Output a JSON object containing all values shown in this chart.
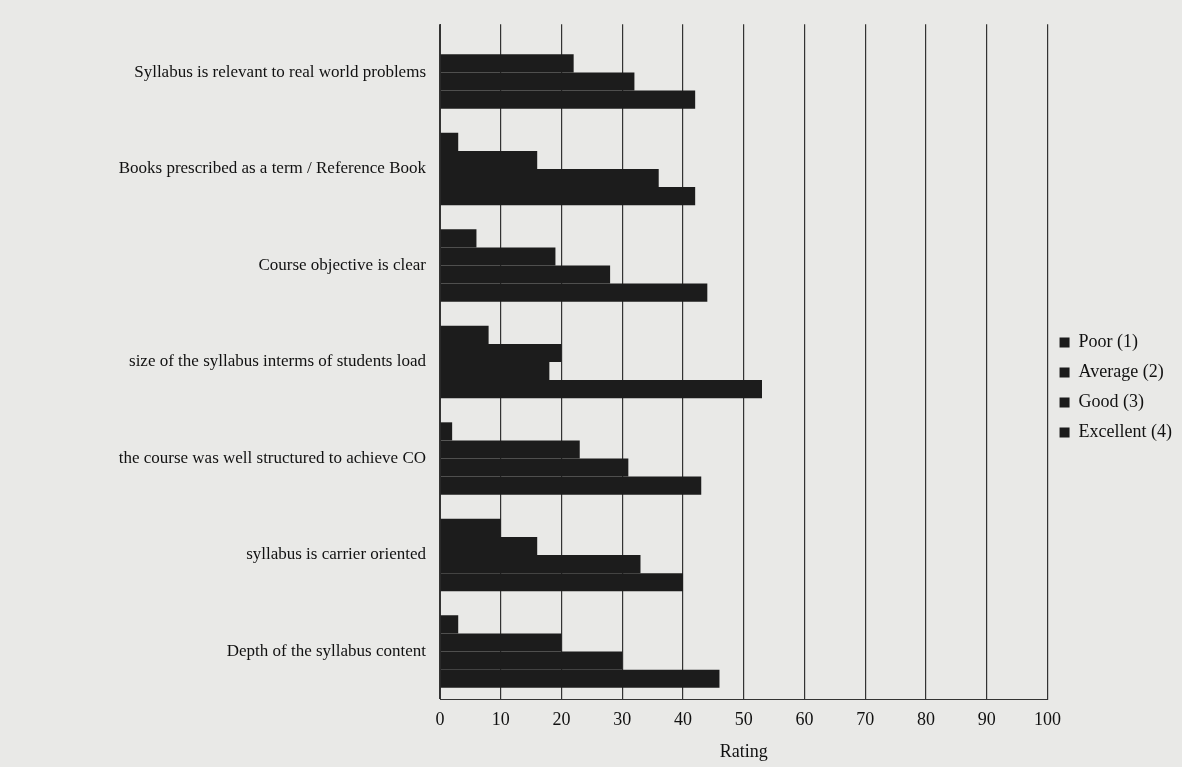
{
  "chart_data": {
    "type": "bar",
    "orientation": "horizontal",
    "xlabel": "Rating",
    "categories": [
      "Syllabus is relevant to real world problems",
      "Books prescribed as a term / Reference Book",
      "Course objective is clear",
      "size of the syllabus interms of students load",
      "the course was well structured to achieve CO",
      "syllabus is carrier oriented",
      "Depth of the syllabus content"
    ],
    "series": [
      {
        "name": "Poor (1)",
        "color": "#1c1c1c",
        "values": [
          0,
          3,
          6,
          8,
          2,
          10,
          3
        ]
      },
      {
        "name": "Average (2)",
        "color": "#1c1c1c",
        "values": [
          22,
          16,
          19,
          20,
          23,
          16,
          20
        ]
      },
      {
        "name": "Good (3)",
        "color": "#1c1c1c",
        "values": [
          32,
          36,
          28,
          18,
          31,
          33,
          30
        ]
      },
      {
        "name": "Excellent (4)",
        "color": "#1c1c1c",
        "values": [
          42,
          42,
          44,
          53,
          43,
          40,
          46
        ]
      }
    ],
    "xlim": [
      0,
      100
    ],
    "xticks": [
      0,
      10,
      20,
      30,
      40,
      50,
      60,
      70,
      80,
      90,
      100
    ],
    "grid": "x",
    "legend": "right"
  }
}
